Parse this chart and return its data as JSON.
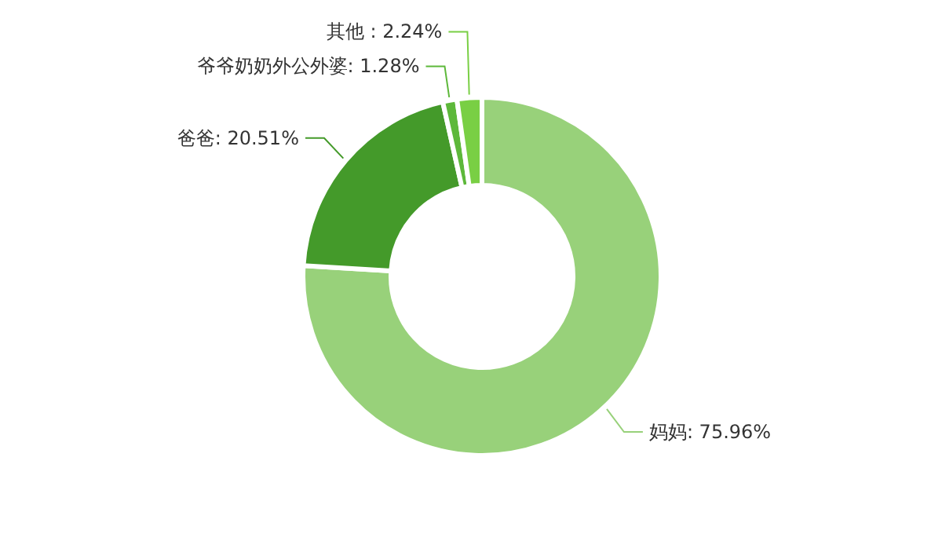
{
  "chart_data": {
    "type": "donut",
    "categories": [
      "妈妈",
      "爸爸",
      "爷爷奶奶外公外婆",
      "其他 "
    ],
    "values": [
      75.96,
      20.51,
      1.28,
      2.24
    ],
    "value_labels": [
      ": 75.96%",
      ": 20.51%",
      ": 1.28%",
      ": 2.24%"
    ],
    "colors": [
      "#98d17a",
      "#449a2a",
      "#5db83a",
      "#79cf44"
    ]
  }
}
